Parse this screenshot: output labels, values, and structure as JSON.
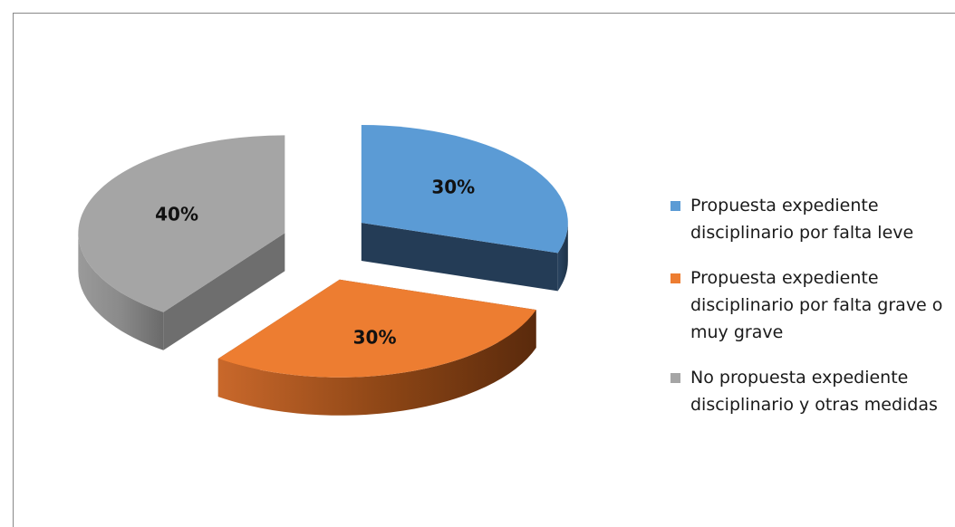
{
  "chart_data": {
    "type": "pie",
    "style": "3d-exploded",
    "title": "",
    "legend_position": "right",
    "slices": [
      {
        "name": "Propuesta expediente disciplinario por falta leve",
        "value": 30,
        "label": "30%",
        "color": "#5B9BD5",
        "side_color": "#243C56"
      },
      {
        "name": "Propuesta expediente disciplinario por falta grave o muy grave",
        "value": 30,
        "label": "30%",
        "color": "#ED7D31",
        "side_color": "#7A3A12"
      },
      {
        "name": "No propuesta expediente disciplinario y otras medidas",
        "value": 40,
        "label": "40%",
        "color": "#A5A5A5",
        "side_color": "#6E6E6E"
      }
    ]
  }
}
